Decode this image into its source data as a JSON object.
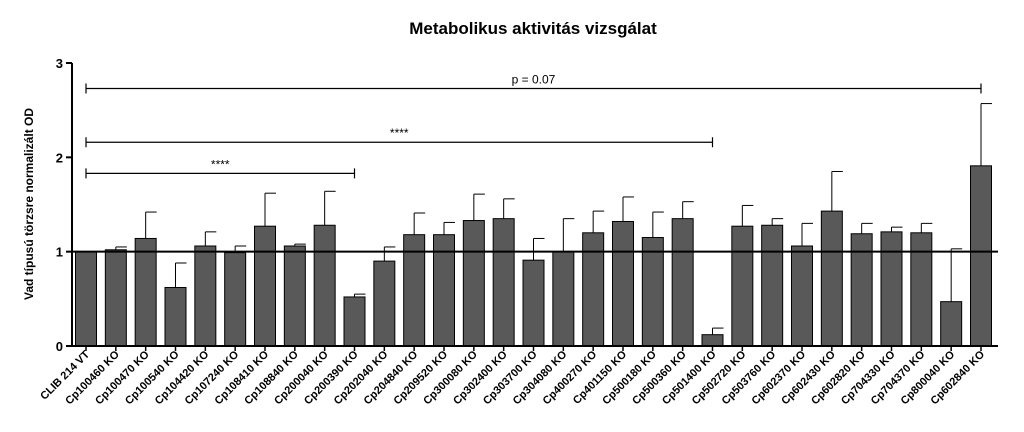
{
  "chart_data": {
    "type": "bar",
    "title": "Metabolikus aktivitás vizsgálat",
    "xlabel": "",
    "ylabel": "Vad típusú törzsre normalizált OD",
    "ylim": [
      0,
      3
    ],
    "yticks": [
      "0",
      "1",
      "2",
      "3"
    ],
    "reference_line": 1,
    "bar_color": "#595959",
    "categories": [
      "CLIB 214 VT",
      "Cp100460 KO",
      "Cp100470 KO",
      "Cp100540 KO",
      "Cp104420 KO",
      "Cp107240 KO",
      "Cp108410 KO",
      "Cp108840 KO",
      "Cp200040 KO",
      "Cp200390 KO",
      "Cp202040 KO",
      "Cp204840 KO",
      "Cp209520 KO",
      "Cp300080 KO",
      "Cp302400 KO",
      "Cp303700 KO",
      "Cp304080 KO",
      "Cp400270 KO",
      "Cp401150 KO",
      "Cp500180 KO",
      "Cp500360 KO",
      "Cp501400 KO",
      "Cp502720 KO",
      "Cp503760 KO",
      "Cp602370 KO",
      "Cp602430 KO",
      "Cp602820 KO",
      "Cp704330 KO",
      "Cp704370 KO",
      "Cp800040 KO",
      "Cp602840 KO"
    ],
    "values": [
      1.0,
      1.02,
      1.14,
      0.62,
      1.06,
      0.99,
      1.27,
      1.06,
      1.28,
      0.52,
      0.9,
      1.18,
      1.18,
      1.33,
      1.35,
      0.91,
      1.0,
      1.2,
      1.32,
      1.15,
      1.35,
      0.12,
      1.27,
      1.28,
      1.06,
      1.43,
      1.19,
      1.21,
      1.2,
      0.47,
      1.91
    ],
    "error_upper": [
      0,
      0.03,
      0.28,
      0.26,
      0.15,
      0.07,
      0.35,
      0.02,
      0.36,
      0.03,
      0.15,
      0.23,
      0.13,
      0.28,
      0.21,
      0.23,
      0.35,
      0.23,
      0.26,
      0.27,
      0.18,
      0.07,
      0.22,
      0.07,
      0.24,
      0.42,
      0.11,
      0.05,
      0.1,
      0.56,
      0.66
    ],
    "significance": [
      {
        "from": 0,
        "to": 30,
        "label": "p = 0.07",
        "y": 2.73
      },
      {
        "from": 0,
        "to": 21,
        "label": "****",
        "y": 2.16
      },
      {
        "from": 0,
        "to": 9,
        "label": "****",
        "y": 1.83
      }
    ]
  }
}
